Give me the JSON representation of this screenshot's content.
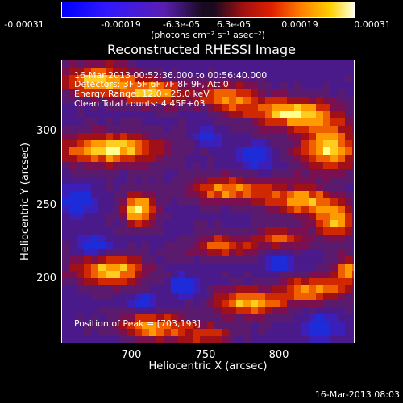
{
  "colorbar": {
    "tick_labels": [
      "-0.00031",
      "-0.00019",
      "-6.3e-05",
      "6.3e-05",
      "0.00019",
      "0.00031"
    ],
    "units": "(photons cm⁻² s⁻¹ asec⁻²)",
    "colormap": [
      "#0000ff",
      "#3a1aff",
      "#6a1fc8",
      "#7a1a6a",
      "#b01010",
      "#e03000",
      "#ff8000",
      "#ffd000",
      "#ffffc0"
    ]
  },
  "title": "Reconstructed RHESSI Image",
  "info": {
    "time_range": "16-Mar-2013 00:52:36.000 to 00:56:40.000",
    "detectors": "Detectors: 3F 5F 6F 7F 8F 9F, Att 0",
    "energy_range": "Energy Range: 12.0 - 25.0 keV",
    "clean": "Clean     Total counts: 4.45E+03",
    "peak": "Position of Peak = [703,193]"
  },
  "axes": {
    "x_label": "Heliocentric X (arcsec)",
    "y_label": "Heliocentric Y (arcsec)",
    "x_ticks": [
      "700",
      "750",
      "800"
    ],
    "y_ticks": [
      "300",
      "250",
      "200"
    ]
  },
  "timestamp": "16-Mar-2013 08:03"
}
